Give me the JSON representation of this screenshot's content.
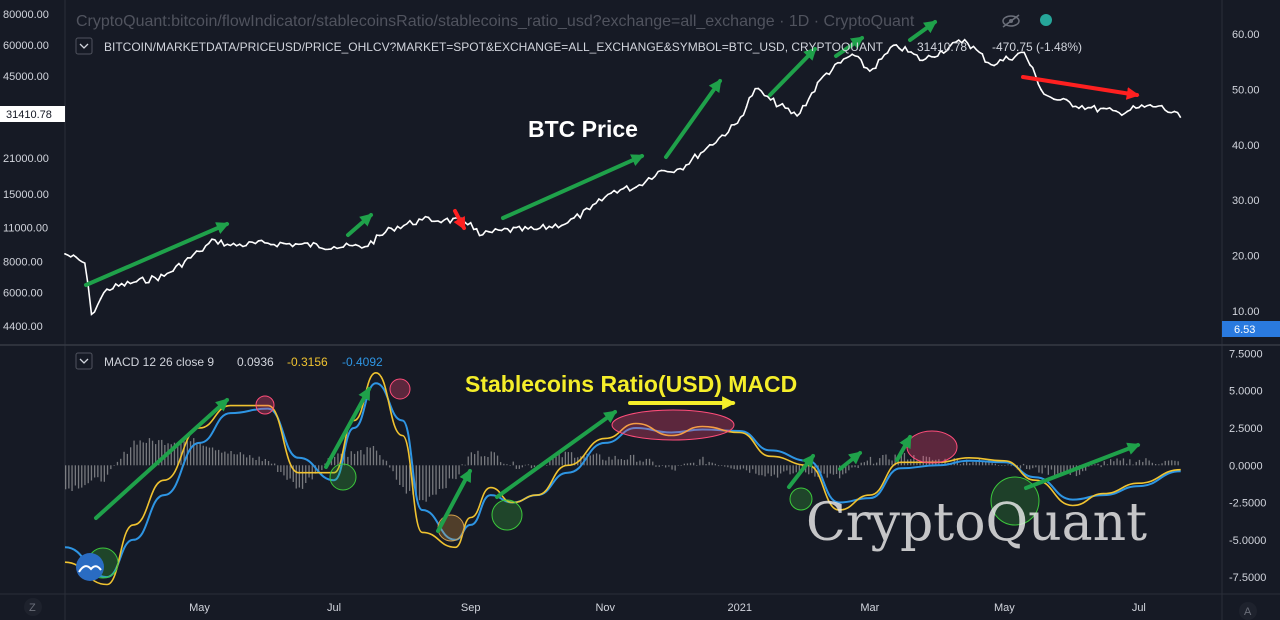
{
  "header": {
    "source_title": "CryptoQuant:bitcoin/flowIndicator/stablecoinsRatio/stablecoins_ratio_usd?exchange=all_exchange · 1D · CryptoQuant",
    "price_series_label": "BITCOIN/MARKETDATA/PRICEUSD/PRICE_OHLCV?MARKET=SPOT&EXCHANGE=ALL_EXCHANGE&SYMBOL=BTC_USD, CRYPTOQUANT",
    "price_value": "31410.78",
    "price_change": "-470.75 (-1.48%)",
    "eye_icon": "eye-off-icon",
    "status_dot_color": "#26a69a"
  },
  "annotations": {
    "btc_price": "BTC Price",
    "macd_title": "Stablecoins Ratio(USD) MACD",
    "watermark": "CryptoQuant",
    "arrow_up_color": "#1fa14a",
    "arrow_down_color": "#ff2020",
    "title_color": "#f5ee2a"
  },
  "macd_legend": {
    "label": "MACD 12 26 close 9",
    "histogram": "0.0936",
    "macd": "-0.3156",
    "signal": "-0.4092"
  },
  "badges": {
    "price_marker": "31410.78",
    "ratio_marker": "6.53",
    "left_corner": "Z",
    "right_corner": "A"
  },
  "chart_data": [
    {
      "type": "line",
      "title": "",
      "x_axis": {
        "tick_labels": [
          "May",
          "Jul",
          "Sep",
          "Nov",
          "2021",
          "Mar",
          "May",
          "Jul"
        ],
        "range": [
          "2020-03-01",
          "2021-07-31"
        ]
      },
      "left_axis": {
        "scale": "log",
        "tick_labels": [
          "80000.00",
          "60000.00",
          "45000.00",
          "21000.00",
          "15000.00",
          "11000.00",
          "8000.00",
          "6000.00",
          "4400.00"
        ],
        "unit": "USD"
      },
      "right_axis": {
        "scale": "linear",
        "tick_labels": [
          "60.00",
          "50.00",
          "40.00",
          "30.00",
          "20.00",
          "10.00"
        ],
        "range": [
          2,
          64
        ]
      },
      "series": [
        {
          "color": "#ffffff",
          "x": [
            "2020-03-01",
            "2020-03-10",
            "2020-03-13",
            "2020-03-20",
            "2020-04-01",
            "2020-04-15",
            "2020-05-01",
            "2020-05-08",
            "2020-05-15",
            "2020-06-01",
            "2020-06-15",
            "2020-07-01",
            "2020-07-15",
            "2020-07-27",
            "2020-08-10",
            "2020-08-20",
            "2020-09-01",
            "2020-09-05",
            "2020-09-15",
            "2020-10-01",
            "2020-10-15",
            "2020-10-25",
            "2020-11-05",
            "2020-11-15",
            "2020-11-25",
            "2020-12-05",
            "2020-12-17",
            "2020-12-31",
            "2021-01-08",
            "2021-01-15",
            "2021-01-27",
            "2021-02-08",
            "2021-02-21",
            "2021-03-01",
            "2021-03-13",
            "2021-03-25",
            "2021-04-13",
            "2021-04-25",
            "2021-05-10",
            "2021-05-19",
            "2021-05-25",
            "2021-06-08",
            "2021-06-22",
            "2021-07-01",
            "2021-07-10",
            "2021-07-20"
          ],
          "values": [
            8600,
            7900,
            4900,
            6200,
            6600,
            7000,
            8800,
            9800,
            9300,
            9500,
            9400,
            9200,
            9200,
            10900,
            11800,
            11800,
            11500,
            10200,
            10700,
            10800,
            11500,
            13000,
            15500,
            16000,
            18500,
            19000,
            23000,
            29000,
            40000,
            36000,
            31000,
            45000,
            55000,
            47000,
            60000,
            52000,
            63000,
            50000,
            56000,
            38000,
            36000,
            33500,
            32000,
            33500,
            34000,
            30500
          ]
        }
      ]
    },
    {
      "type": "line",
      "title": "Stablecoins Ratio(USD) MACD",
      "x_axis": {
        "tick_labels": [
          "May",
          "Jul",
          "Sep",
          "Nov",
          "2021",
          "Mar",
          "May",
          "Jul"
        ]
      },
      "y_axis": {
        "tick_labels": [
          "7.5000",
          "5.0000",
          "2.5000",
          "0.0000",
          "-2.5000",
          "-5.0000",
          "-7.5000"
        ],
        "range": [
          -8.5,
          8
        ]
      },
      "series": [
        {
          "name": "MACD",
          "color": "#f0c330",
          "x": [
            "2020-03-01",
            "2020-03-20",
            "2020-04-01",
            "2020-04-15",
            "2020-05-01",
            "2020-05-15",
            "2020-06-01",
            "2020-06-15",
            "2020-07-01",
            "2020-07-10",
            "2020-07-20",
            "2020-08-01",
            "2020-08-10",
            "2020-08-25",
            "2020-09-01",
            "2020-09-10",
            "2020-09-20",
            "2020-10-01",
            "2020-10-15",
            "2020-11-01",
            "2020-11-15",
            "2020-12-01",
            "2020-12-15",
            "2021-01-01",
            "2021-01-15",
            "2021-02-01",
            "2021-02-15",
            "2021-03-01",
            "2021-03-15",
            "2021-04-01",
            "2021-04-15",
            "2021-05-01",
            "2021-05-15",
            "2021-06-01",
            "2021-06-15",
            "2021-07-01",
            "2021-07-20"
          ],
          "values": [
            -6.5,
            -8.0,
            -4.0,
            -1.0,
            2.5,
            4.0,
            4.0,
            -0.5,
            -0.5,
            3.0,
            6.2,
            2.0,
            -4.5,
            -5.5,
            -3.5,
            -1.5,
            -2.5,
            -2.0,
            0.0,
            1.8,
            2.8,
            2.0,
            2.6,
            2.2,
            0.6,
            0.0,
            -3.0,
            -2.0,
            0.2,
            0.2,
            0.5,
            0.3,
            -1.0,
            -2.7,
            -1.9,
            -1.2,
            -0.3
          ]
        },
        {
          "name": "Signal",
          "color": "#2e95e3",
          "x": [
            "2020-03-01",
            "2020-03-20",
            "2020-04-01",
            "2020-04-15",
            "2020-05-01",
            "2020-05-15",
            "2020-06-01",
            "2020-06-15",
            "2020-07-01",
            "2020-07-10",
            "2020-07-20",
            "2020-08-01",
            "2020-08-10",
            "2020-08-25",
            "2020-09-01",
            "2020-09-10",
            "2020-09-20",
            "2020-10-01",
            "2020-10-15",
            "2020-11-01",
            "2020-11-15",
            "2020-12-01",
            "2020-12-15",
            "2021-01-01",
            "2021-01-15",
            "2021-02-01",
            "2021-02-15",
            "2021-03-01",
            "2021-03-15",
            "2021-04-01",
            "2021-04-15",
            "2021-05-01",
            "2021-05-15",
            "2021-06-01",
            "2021-06-15",
            "2021-07-01",
            "2021-07-20"
          ],
          "values": [
            -5.5,
            -7.5,
            -5.0,
            -2.0,
            1.5,
            3.5,
            3.8,
            0.5,
            -1.0,
            2.5,
            5.5,
            3.0,
            -3.0,
            -5.0,
            -4.0,
            -2.0,
            -2.5,
            -2.0,
            -0.5,
            1.5,
            2.5,
            2.2,
            2.4,
            2.3,
            1.0,
            0.3,
            -2.5,
            -2.2,
            -0.2,
            0.0,
            0.3,
            0.2,
            -0.8,
            -2.3,
            -2.0,
            -1.4,
            -0.4
          ]
        }
      ]
    }
  ]
}
